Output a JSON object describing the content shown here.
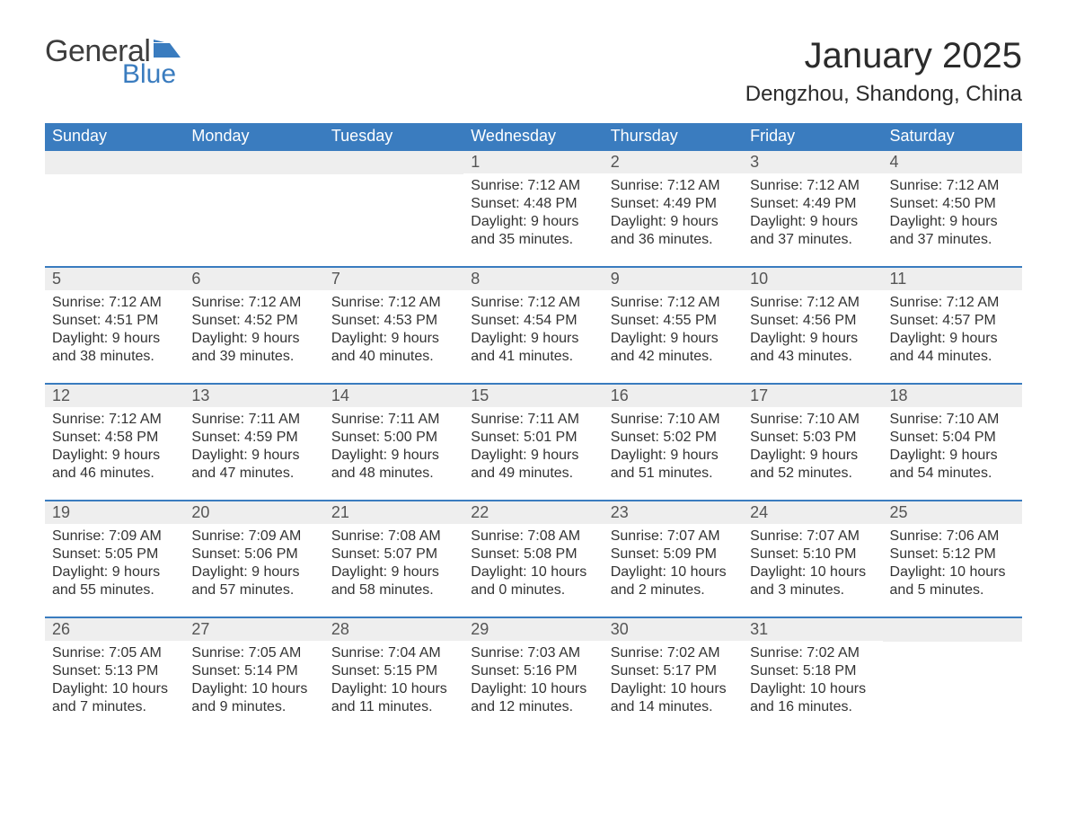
{
  "logo": {
    "text_general": "General",
    "text_blue": "Blue",
    "flag_color": "#3a7cbf"
  },
  "title": "January 2025",
  "location": "Dengzhou, Shandong, China",
  "colors": {
    "header_bg": "#3a7cbf",
    "header_text": "#ffffff",
    "row_border": "#3a7cbf",
    "daynum_bg": "#eeeeee",
    "body_text": "#333333"
  },
  "days_of_week": [
    "Sunday",
    "Monday",
    "Tuesday",
    "Wednesday",
    "Thursday",
    "Friday",
    "Saturday"
  ],
  "weeks": [
    [
      null,
      null,
      null,
      {
        "n": "1",
        "sunrise": "7:12 AM",
        "sunset": "4:48 PM",
        "daylight": "9 hours and 35 minutes."
      },
      {
        "n": "2",
        "sunrise": "7:12 AM",
        "sunset": "4:49 PM",
        "daylight": "9 hours and 36 minutes."
      },
      {
        "n": "3",
        "sunrise": "7:12 AM",
        "sunset": "4:49 PM",
        "daylight": "9 hours and 37 minutes."
      },
      {
        "n": "4",
        "sunrise": "7:12 AM",
        "sunset": "4:50 PM",
        "daylight": "9 hours and 37 minutes."
      }
    ],
    [
      {
        "n": "5",
        "sunrise": "7:12 AM",
        "sunset": "4:51 PM",
        "daylight": "9 hours and 38 minutes."
      },
      {
        "n": "6",
        "sunrise": "7:12 AM",
        "sunset": "4:52 PM",
        "daylight": "9 hours and 39 minutes."
      },
      {
        "n": "7",
        "sunrise": "7:12 AM",
        "sunset": "4:53 PM",
        "daylight": "9 hours and 40 minutes."
      },
      {
        "n": "8",
        "sunrise": "7:12 AM",
        "sunset": "4:54 PM",
        "daylight": "9 hours and 41 minutes."
      },
      {
        "n": "9",
        "sunrise": "7:12 AM",
        "sunset": "4:55 PM",
        "daylight": "9 hours and 42 minutes."
      },
      {
        "n": "10",
        "sunrise": "7:12 AM",
        "sunset": "4:56 PM",
        "daylight": "9 hours and 43 minutes."
      },
      {
        "n": "11",
        "sunrise": "7:12 AM",
        "sunset": "4:57 PM",
        "daylight": "9 hours and 44 minutes."
      }
    ],
    [
      {
        "n": "12",
        "sunrise": "7:12 AM",
        "sunset": "4:58 PM",
        "daylight": "9 hours and 46 minutes."
      },
      {
        "n": "13",
        "sunrise": "7:11 AM",
        "sunset": "4:59 PM",
        "daylight": "9 hours and 47 minutes."
      },
      {
        "n": "14",
        "sunrise": "7:11 AM",
        "sunset": "5:00 PM",
        "daylight": "9 hours and 48 minutes."
      },
      {
        "n": "15",
        "sunrise": "7:11 AM",
        "sunset": "5:01 PM",
        "daylight": "9 hours and 49 minutes."
      },
      {
        "n": "16",
        "sunrise": "7:10 AM",
        "sunset": "5:02 PM",
        "daylight": "9 hours and 51 minutes."
      },
      {
        "n": "17",
        "sunrise": "7:10 AM",
        "sunset": "5:03 PM",
        "daylight": "9 hours and 52 minutes."
      },
      {
        "n": "18",
        "sunrise": "7:10 AM",
        "sunset": "5:04 PM",
        "daylight": "9 hours and 54 minutes."
      }
    ],
    [
      {
        "n": "19",
        "sunrise": "7:09 AM",
        "sunset": "5:05 PM",
        "daylight": "9 hours and 55 minutes."
      },
      {
        "n": "20",
        "sunrise": "7:09 AM",
        "sunset": "5:06 PM",
        "daylight": "9 hours and 57 minutes."
      },
      {
        "n": "21",
        "sunrise": "7:08 AM",
        "sunset": "5:07 PM",
        "daylight": "9 hours and 58 minutes."
      },
      {
        "n": "22",
        "sunrise": "7:08 AM",
        "sunset": "5:08 PM",
        "daylight": "10 hours and 0 minutes."
      },
      {
        "n": "23",
        "sunrise": "7:07 AM",
        "sunset": "5:09 PM",
        "daylight": "10 hours and 2 minutes."
      },
      {
        "n": "24",
        "sunrise": "7:07 AM",
        "sunset": "5:10 PM",
        "daylight": "10 hours and 3 minutes."
      },
      {
        "n": "25",
        "sunrise": "7:06 AM",
        "sunset": "5:12 PM",
        "daylight": "10 hours and 5 minutes."
      }
    ],
    [
      {
        "n": "26",
        "sunrise": "7:05 AM",
        "sunset": "5:13 PM",
        "daylight": "10 hours and 7 minutes."
      },
      {
        "n": "27",
        "sunrise": "7:05 AM",
        "sunset": "5:14 PM",
        "daylight": "10 hours and 9 minutes."
      },
      {
        "n": "28",
        "sunrise": "7:04 AM",
        "sunset": "5:15 PM",
        "daylight": "10 hours and 11 minutes."
      },
      {
        "n": "29",
        "sunrise": "7:03 AM",
        "sunset": "5:16 PM",
        "daylight": "10 hours and 12 minutes."
      },
      {
        "n": "30",
        "sunrise": "7:02 AM",
        "sunset": "5:17 PM",
        "daylight": "10 hours and 14 minutes."
      },
      {
        "n": "31",
        "sunrise": "7:02 AM",
        "sunset": "5:18 PM",
        "daylight": "10 hours and 16 minutes."
      },
      null
    ]
  ],
  "labels": {
    "sunrise": "Sunrise: ",
    "sunset": "Sunset: ",
    "daylight": "Daylight: "
  }
}
